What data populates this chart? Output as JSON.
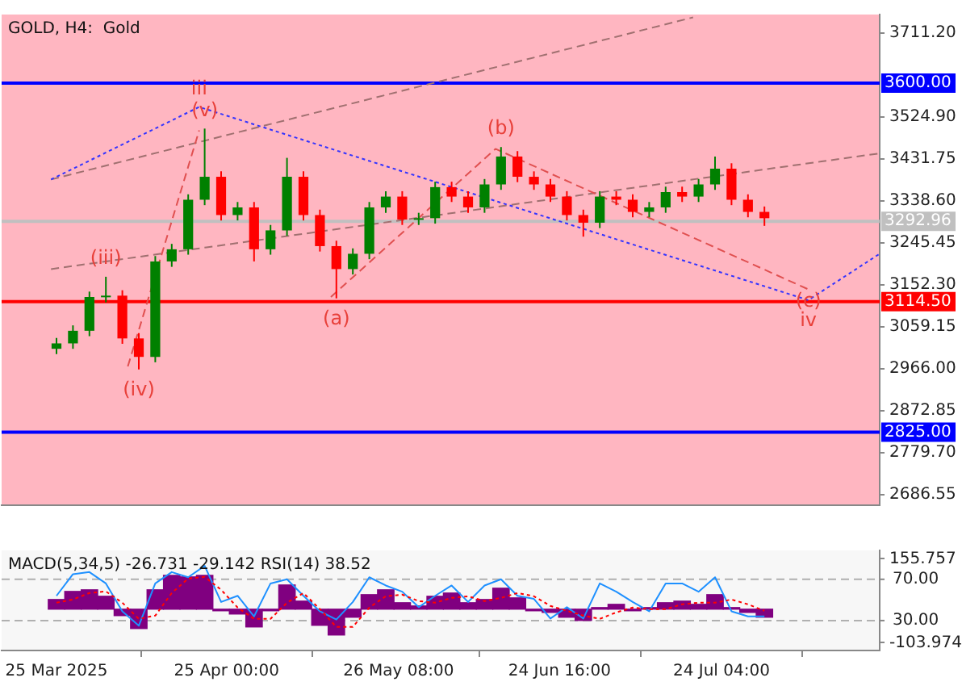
{
  "chart_data": [
    {
      "type": "candlestick",
      "title": "GOLD, H4:  Gold",
      "tick_labels": "y",
      "x": [
        "2025-03-25",
        "2025-03-28",
        "2025-03-31",
        "2025-04-03",
        "2025-04-06",
        "2025-04-09",
        "2025-04-12",
        "2025-04-15",
        "2025-04-18",
        "2025-04-21",
        "2025-04-24",
        "2025-04-27",
        "2025-04-30",
        "2025-05-03",
        "2025-05-06",
        "2025-05-09",
        "2025-05-12",
        "2025-05-15",
        "2025-05-18",
        "2025-05-21",
        "2025-05-24",
        "2025-05-27",
        "2025-05-30",
        "2025-06-02",
        "2025-06-05",
        "2025-06-08",
        "2025-06-11",
        "2025-06-14",
        "2025-06-17",
        "2025-06-20",
        "2025-06-23",
        "2025-06-26",
        "2025-06-29",
        "2025-07-02",
        "2025-07-05",
        "2025-07-08",
        "2025-07-11",
        "2025-07-14",
        "2025-07-17",
        "2025-07-20",
        "2025-07-23",
        "2025-07-26",
        "2025-07-29",
        "2025-08-01"
      ],
      "ohlc": [
        [
          3010,
          3034,
          2998,
          3022
        ],
        [
          3022,
          3062,
          3010,
          3050
        ],
        [
          3050,
          3137,
          3038,
          3125
        ],
        [
          3125,
          3170,
          3113,
          3128
        ],
        [
          3128,
          3140,
          3021,
          3033
        ],
        [
          3033,
          3045,
          2964,
          2992
        ],
        [
          2992,
          3216,
          2980,
          3204
        ],
        [
          3204,
          3243,
          3192,
          3231
        ],
        [
          3231,
          3353,
          3219,
          3341
        ],
        [
          3341,
          3499,
          3329,
          3392
        ],
        [
          3392,
          3404,
          3295,
          3307
        ],
        [
          3307,
          3336,
          3295,
          3324
        ],
        [
          3324,
          3336,
          3204,
          3231
        ],
        [
          3231,
          3285,
          3219,
          3273
        ],
        [
          3273,
          3434,
          3261,
          3392
        ],
        [
          3392,
          3404,
          3295,
          3307
        ],
        [
          3307,
          3319,
          3226,
          3238
        ],
        [
          3238,
          3250,
          3122,
          3187
        ],
        [
          3187,
          3233,
          3175,
          3221
        ],
        [
          3221,
          3336,
          3209,
          3324
        ],
        [
          3324,
          3360,
          3312,
          3348
        ],
        [
          3348,
          3360,
          3285,
          3297
        ],
        [
          3297,
          3312,
          3285,
          3300
        ],
        [
          3300,
          3381,
          3288,
          3369
        ],
        [
          3369,
          3381,
          3336,
          3348
        ],
        [
          3348,
          3360,
          3312,
          3324
        ],
        [
          3324,
          3387,
          3312,
          3375
        ],
        [
          3375,
          3458,
          3363,
          3437
        ],
        [
          3437,
          3449,
          3380,
          3392
        ],
        [
          3392,
          3404,
          3363,
          3375
        ],
        [
          3375,
          3387,
          3336,
          3348
        ],
        [
          3348,
          3360,
          3295,
          3307
        ],
        [
          3307,
          3319,
          3259,
          3290
        ],
        [
          3290,
          3360,
          3278,
          3348
        ],
        [
          3348,
          3360,
          3329,
          3341
        ],
        [
          3341,
          3353,
          3302,
          3314
        ],
        [
          3314,
          3336,
          3302,
          3324
        ],
        [
          3324,
          3370,
          3312,
          3358
        ],
        [
          3358,
          3370,
          3336,
          3348
        ],
        [
          3348,
          3387,
          3336,
          3375
        ],
        [
          3375,
          3437,
          3363,
          3410
        ],
        [
          3410,
          3422,
          3329,
          3341
        ],
        [
          3341,
          3353,
          3302,
          3314
        ],
        [
          3314,
          3326,
          3283,
          3300
        ]
      ],
      "colors": [
        "#008000",
        "#008000",
        "#008000",
        "#008000",
        "#ff0000",
        "#ff0000",
        "#008000",
        "#008000",
        "#008000",
        "#008000",
        "#ff0000",
        "#008000",
        "#ff0000",
        "#008000",
        "#008000",
        "#ff0000",
        "#ff0000",
        "#ff0000",
        "#008000",
        "#008000",
        "#008000",
        "#ff0000",
        "#008000",
        "#008000",
        "#ff0000",
        "#ff0000",
        "#008000",
        "#008000",
        "#ff0000",
        "#ff0000",
        "#ff0000",
        "#ff0000",
        "#ff0000",
        "#008000",
        "#ff0000",
        "#ff0000",
        "#008000",
        "#008000",
        "#ff0000",
        "#008000",
        "#008000",
        "#ff0000",
        "#ff0000",
        "#ff0000"
      ],
      "series": [
        {
          "type": "line",
          "color": "#3333ff",
          "line_style": "dotted",
          "x": [
            "2025-03-24",
            "2025-04-20",
            "2025-08-09",
            "2025-08-22"
          ],
          "values": [
            3386,
            3547,
            3118,
            3221
          ]
        },
        {
          "type": "line",
          "color": "#e05050",
          "line_style": "dashed",
          "x": [
            "2025-05-14",
            "2025-06-13",
            "2025-08-09"
          ],
          "values": [
            3125,
            3454,
            3142
          ]
        },
        {
          "type": "line",
          "color": "#e05050",
          "line_style": "dashed",
          "x": [
            "2025-04-07",
            "2025-04-20"
          ],
          "values": [
            2971,
            3495
          ]
        },
        {
          "type": "line",
          "color": "#a07070",
          "line_style": "dashed",
          "x": [
            "2025-03-24",
            "2025-07-19"
          ],
          "values": [
            3386,
            3746
          ]
        },
        {
          "type": "line",
          "color": "#a07070",
          "line_style": "dashed",
          "x": [
            "2025-03-24",
            "2025-08-22"
          ],
          "values": [
            3187,
            3444
          ]
        }
      ],
      "ref_lines": [
        {
          "axis": "y",
          "value": 3600,
          "label": "3600.00",
          "color": "#0000ff"
        },
        {
          "axis": "y",
          "value": 3114.5,
          "label": "3114.50",
          "color": "#ff0000"
        },
        {
          "axis": "y",
          "value": 2825,
          "label": "2825.00",
          "color": "#0000ff"
        },
        {
          "axis": "y",
          "value": 3292.96,
          "label": "3292.96",
          "color": "#c0c0c0"
        }
      ],
      "annotations": [
        {
          "text": "(iii)",
          "x": "2025-04-03",
          "y": 3170
        },
        {
          "text": "(iv)",
          "x": "2025-04-09",
          "y": 2964
        },
        {
          "text": "(v)",
          "x": "2025-04-21",
          "y": 3499
        },
        {
          "text": "iii",
          "x": "2025-04-20",
          "y": 3547
        },
        {
          "text": "(a)",
          "x": "2025-05-15",
          "y": 3122
        },
        {
          "text": "(b)",
          "x": "2025-06-14",
          "y": 3458
        },
        {
          "text": "(c)",
          "x": "2025-08-09",
          "y": 3114.5
        },
        {
          "text": "iv",
          "x": "2025-08-09",
          "y": 3118
        }
      ],
      "xlim": [
        "2025-03-15",
        "2025-08-22"
      ],
      "ylim": [
        2662.6,
        3752.3
      ],
      "yticks": [
        {
          "value": 3711.2,
          "label": "3711.20"
        },
        {
          "value": 3524.9,
          "label": "3524.90"
        },
        {
          "value": 3431.75,
          "label": "3431.75"
        },
        {
          "value": 3338.6,
          "label": "3338.60"
        },
        {
          "value": 3245.45,
          "label": "3245.45"
        },
        {
          "value": 3152.3,
          "label": "3152.30"
        },
        {
          "value": 3059.15,
          "label": "3059.15"
        },
        {
          "value": 2966,
          "label": "2966.00"
        },
        {
          "value": 2872.85,
          "label": "2872.85"
        },
        {
          "value": 2779.7,
          "label": "2779.70"
        },
        {
          "value": 2686.55,
          "label": "2686.55"
        }
      ]
    },
    {
      "type": "bar",
      "title": "MACD(5,34,5) -26.731 -29.142 RSI(14) 38.52",
      "x": [
        "2025-03-25",
        "2025-03-28",
        "2025-03-31",
        "2025-04-03",
        "2025-04-06",
        "2025-04-09",
        "2025-04-12",
        "2025-04-15",
        "2025-04-18",
        "2025-04-21",
        "2025-04-24",
        "2025-04-27",
        "2025-04-30",
        "2025-05-03",
        "2025-05-06",
        "2025-05-09",
        "2025-05-12",
        "2025-05-15",
        "2025-05-18",
        "2025-05-21",
        "2025-05-24",
        "2025-05-27",
        "2025-05-30",
        "2025-06-02",
        "2025-06-05",
        "2025-06-08",
        "2025-06-11",
        "2025-06-14",
        "2025-06-17",
        "2025-06-20",
        "2025-06-23",
        "2025-06-26",
        "2025-06-29",
        "2025-07-02",
        "2025-07-05",
        "2025-07-08",
        "2025-07-11",
        "2025-07-14",
        "2025-07-17",
        "2025-07-20",
        "2025-07-23",
        "2025-07-26",
        "2025-07-29",
        "2025-08-01"
      ],
      "series": [
        {
          "color": "#800080",
          "values": [
            30,
            55,
            60,
            40,
            -20,
            -60,
            60,
            105,
            100,
            105,
            -5,
            -15,
            -55,
            -5,
            75,
            25,
            -50,
            -80,
            -25,
            45,
            60,
            20,
            10,
            40,
            50,
            20,
            30,
            65,
            35,
            -5,
            -10,
            -25,
            -35,
            5,
            15,
            -5,
            5,
            20,
            25,
            15,
            45,
            5,
            -10,
            -25
          ]
        },
        {
          "type": "line",
          "color": "#ff0000",
          "line_style": "dotted",
          "values": [
            20,
            30,
            50,
            55,
            20,
            -30,
            -20,
            50,
            95,
            100,
            60,
            5,
            -30,
            -30,
            20,
            50,
            0,
            -55,
            -55,
            5,
            40,
            45,
            25,
            20,
            35,
            40,
            25,
            35,
            50,
            40,
            10,
            -5,
            -20,
            -30,
            -10,
            5,
            0,
            0,
            15,
            20,
            20,
            30,
            15,
            -5
          ]
        },
        {
          "type": "line",
          "axis": "y2",
          "color": "#1e90ff",
          "values": [
            54,
            75,
            77,
            66,
            39,
            25,
            66,
            77,
            72,
            83,
            48,
            54,
            34,
            66,
            70,
            54,
            39,
            31,
            48,
            72,
            64,
            58,
            43,
            54,
            64,
            48,
            64,
            70,
            54,
            51,
            32,
            43,
            32,
            66,
            58,
            48,
            39,
            66,
            66,
            58,
            72,
            39,
            34,
            34
          ]
        }
      ],
      "ref_lines": [
        {
          "axis": "y2",
          "value": 70,
          "color": "#b0b0b0",
          "line_style": "dashed"
        },
        {
          "axis": "y2",
          "value": 30,
          "color": "#b0b0b0",
          "line_style": "dashed"
        }
      ],
      "xlim": [
        "2025-03-15",
        "2025-08-22"
      ],
      "xticks": [
        {
          "value": "2025-03-25",
          "label": "25 Mar 2025"
        },
        {
          "value": "2025-04-25T00:00",
          "label": "25 Apr 00:00"
        },
        {
          "value": "2025-05-26T08:00",
          "label": "26 May 08:00"
        },
        {
          "value": "2025-06-24T16:00",
          "label": "24 Jun 16:00"
        },
        {
          "value": "2025-07-24T04:00",
          "label": "24 Jul 04:00"
        }
      ],
      "ylim": [
        -128,
        182
      ],
      "yticks": [
        {
          "value": 155.757,
          "label": "155.757"
        },
        {
          "value": -103.974,
          "label": "-103.974"
        }
      ],
      "y2lim": [
        1,
        98
      ],
      "y2ticks": [
        {
          "value": 70,
          "label": "70.00"
        },
        {
          "value": 30,
          "label": "30.00"
        }
      ]
    }
  ]
}
